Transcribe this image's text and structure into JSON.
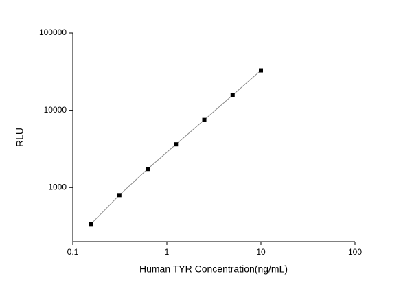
{
  "chart_data": {
    "type": "scatter",
    "x_label": "Human TYR Concentration(ng/mL)",
    "y_label": "RLU",
    "x": [
      0.156,
      0.3125,
      0.625,
      1.25,
      2.5,
      5,
      10
    ],
    "series": [
      {
        "name": "RLU",
        "color": "#000000",
        "values": [
          338,
          798,
          1738,
          3631,
          7510,
          15700,
          32800
        ]
      }
    ],
    "xlim": [
      0.1,
      100
    ],
    "ylim": [
      200,
      100000
    ],
    "xticks": [
      0.1,
      1,
      10,
      100
    ],
    "yticks": [
      1000,
      10000,
      100000
    ],
    "xscale": "log",
    "yscale": "log",
    "line_color": "#888888",
    "grid": false
  }
}
